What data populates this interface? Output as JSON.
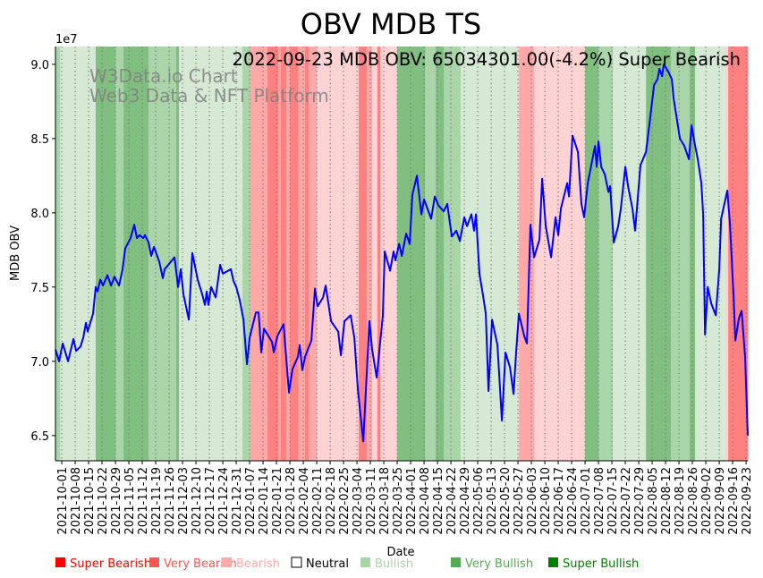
{
  "chart_data": {
    "type": "line",
    "title": "OBV MDB TS",
    "annotation": "2022-09-23 MDB OBV: 65034301.00(-4.2%) Super Bearish",
    "watermark": [
      "W3Data.io Chart",
      "Web3 Data & NFT Platform"
    ],
    "xlabel": "Date",
    "ylabel": "MDB OBV",
    "y_offset_label": "1e7",
    "x_unit": "days since 2021-10-01",
    "xlim": [
      -3.3,
      357.9
    ],
    "ylim": [
      6.33,
      9.12
    ],
    "y_ticks": [
      6.5,
      7.0,
      7.5,
      8.0,
      8.5,
      9.0
    ],
    "y_tick_labels": [
      "6.5",
      "7.0",
      "7.5",
      "8.0",
      "8.5",
      "9.0"
    ],
    "x_tick_labels": [
      "2021-10-01",
      "2021-10-08",
      "2021-10-15",
      "2021-10-22",
      "2021-10-29",
      "2021-11-05",
      "2021-11-12",
      "2021-11-19",
      "2021-11-26",
      "2021-12-03",
      "2021-12-10",
      "2021-12-17",
      "2021-12-24",
      "2021-12-31",
      "2022-01-07",
      "2022-01-14",
      "2022-01-21",
      "2022-01-28",
      "2022-02-04",
      "2022-02-11",
      "2022-02-18",
      "2022-02-25",
      "2022-03-04",
      "2022-03-11",
      "2022-03-18",
      "2022-03-25",
      "2022-04-01",
      "2022-04-08",
      "2022-04-15",
      "2022-04-22",
      "2022-04-29",
      "2022-05-06",
      "2022-05-13",
      "2022-05-20",
      "2022-05-27",
      "2022-06-03",
      "2022-06-10",
      "2022-06-17",
      "2022-06-24",
      "2022-07-01",
      "2022-07-08",
      "2022-07-15",
      "2022-07-22",
      "2022-07-29",
      "2022-08-05",
      "2022-08-12",
      "2022-08-19",
      "2022-08-26",
      "2022-09-02",
      "2022-09-09",
      "2022-09-16",
      "2022-09-23"
    ],
    "x_tick_step_days": 7,
    "grid": "vertical dotted",
    "series": [
      {
        "name": "MDB OBV (1e7)",
        "color": "#0000ff",
        "x": [
          -3.3,
          -1.4,
          0.5,
          3.3,
          6.1,
          7.5,
          9.8,
          11.2,
          12.6,
          13.5,
          16.3,
          17.7,
          18.7,
          20.1,
          21.5,
          23.8,
          25.7,
          27.5,
          29.9,
          31.7,
          33.1,
          35.9,
          37.8,
          39.2,
          40.6,
          42.5,
          43.4,
          45.3,
          46.7,
          48.1,
          50.9,
          52.7,
          53.7,
          58.8,
          60.7,
          62.1,
          63.5,
          66.3,
          68.1,
          70.9,
          73.3,
          74.7,
          75.6,
          76.5,
          77.9,
          80.3,
          82.6,
          84.0,
          88.2,
          89.6,
          91.0,
          92.9,
          94.8,
          96.6,
          98.0,
          101.3,
          102.7,
          104.1,
          105.5,
          109.7,
          110.6,
          112.5,
          115.7,
          118.5,
          120.4,
          123.2,
          124.1,
          125.5,
          126.9,
          130.2,
          132.1,
          133.5,
          136.3,
          137.7,
          140.5,
          144.2,
          145.6,
          147.5,
          150.7,
          152.6,
          154.5,
          157.3,
          160.5,
          161.9,
          164.3,
          167.5,
          168.5,
          171.3,
          173.1,
          174.1,
          176.0,
          177.4,
          179.7,
          181.5,
          182.9,
          185.3,
          187.6,
          189.0,
          192.7,
          194.6,
          196.5,
          199.3,
          201.1,
          203.5,
          205.8,
          207.7,
          210.0,
          211.4,
          213.7,
          215.1,
          216.1,
          217.9,
          219.8,
          221.2,
          222.6,
          224.5,
          227.3,
          229.6,
          231.5,
          233.8,
          235.7,
          237.1,
          238.5,
          241.3,
          242.7,
          244.5,
          246.4,
          249.2,
          250.6,
          252.5,
          255.3,
          257.6,
          259.0,
          260.4,
          263.7,
          264.6,
          266.5,
          269.3,
          271.1,
          272.5,
          274.4,
          278.2,
          279.1,
          280.0,
          281.4,
          283.3,
          285.2,
          286.1,
          288.0,
          290.3,
          291.7,
          294.0,
          295.4,
          297.7,
          299.1,
          301.9,
          304.8,
          306.6,
          309.0,
          310.8,
          311.8,
          313.2,
          314.1,
          316.4,
          318.3,
          319.2,
          322.5,
          324.8,
          327.2,
          328.6,
          330.0,
          331.8,
          333.7,
          334.6,
          335.6,
          337.0,
          338.8,
          341.2,
          343.0,
          344.0,
          347.2,
          348.6,
          350.5,
          351.4,
          353.3,
          354.7,
          356.5,
          357.9
        ],
        "y": [
          7.08,
          7.0,
          7.12,
          7.0,
          7.15,
          7.07,
          7.1,
          7.16,
          7.26,
          7.2,
          7.32,
          7.5,
          7.47,
          7.55,
          7.51,
          7.58,
          7.51,
          7.57,
          7.51,
          7.62,
          7.76,
          7.83,
          7.92,
          7.83,
          7.85,
          7.83,
          7.85,
          7.8,
          7.71,
          7.77,
          7.67,
          7.56,
          7.62,
          7.7,
          7.5,
          7.62,
          7.45,
          7.28,
          7.73,
          7.55,
          7.45,
          7.38,
          7.47,
          7.38,
          7.5,
          7.43,
          7.65,
          7.59,
          7.62,
          7.54,
          7.5,
          7.41,
          7.28,
          6.98,
          7.16,
          7.33,
          7.33,
          7.06,
          7.22,
          7.13,
          7.06,
          7.17,
          7.25,
          6.79,
          6.95,
          7.03,
          7.11,
          6.94,
          7.03,
          7.14,
          7.49,
          7.37,
          7.43,
          7.51,
          7.27,
          7.2,
          7.04,
          7.27,
          7.31,
          7.16,
          6.81,
          6.46,
          7.27,
          7.08,
          6.89,
          7.31,
          7.74,
          7.61,
          7.74,
          7.68,
          7.79,
          7.71,
          7.86,
          7.79,
          8.12,
          8.25,
          7.99,
          8.09,
          7.96,
          8.11,
          8.05,
          8.01,
          8.06,
          7.84,
          7.88,
          7.81,
          7.97,
          7.91,
          7.99,
          7.88,
          7.99,
          7.59,
          7.44,
          7.32,
          6.8,
          7.28,
          7.11,
          6.6,
          7.06,
          6.96,
          6.78,
          7.07,
          7.32,
          7.17,
          7.12,
          7.92,
          7.7,
          7.82,
          8.23,
          7.91,
          7.7,
          7.97,
          7.85,
          8.03,
          8.2,
          8.11,
          8.52,
          8.41,
          8.06,
          7.97,
          8.2,
          8.45,
          8.31,
          8.48,
          8.31,
          8.26,
          8.14,
          8.18,
          7.8,
          7.91,
          8.03,
          8.31,
          8.18,
          8.03,
          7.88,
          8.32,
          8.41,
          8.6,
          8.86,
          8.9,
          8.97,
          8.92,
          9.0,
          8.95,
          8.9,
          8.77,
          8.5,
          8.45,
          8.36,
          8.59,
          8.48,
          8.36,
          8.2,
          7.99,
          7.18,
          7.5,
          7.39,
          7.31,
          7.62,
          7.96,
          8.15,
          7.92,
          7.44,
          7.14,
          7.29,
          7.34,
          7.03,
          6.5
        ]
      }
    ],
    "signal_bands": [
      [
        -3.3,
        -0.9,
        2
      ],
      [
        -0.9,
        17.7,
        1
      ],
      [
        17.7,
        28.0,
        3
      ],
      [
        28.0,
        32.2,
        2
      ],
      [
        32.2,
        45.3,
        3
      ],
      [
        45.3,
        59.7,
        2
      ],
      [
        59.7,
        61.1,
        3
      ],
      [
        61.1,
        94.3,
        1
      ],
      [
        94.3,
        98.5,
        2
      ],
      [
        98.5,
        107.3,
        -2
      ],
      [
        107.3,
        112.9,
        -3
      ],
      [
        112.9,
        114.3,
        -2
      ],
      [
        114.3,
        117.1,
        -3
      ],
      [
        117.1,
        119.0,
        -2
      ],
      [
        119.0,
        123.2,
        -3
      ],
      [
        123.2,
        126.9,
        -2
      ],
      [
        126.9,
        128.8,
        -3
      ],
      [
        128.8,
        133.0,
        -2
      ],
      [
        133.0,
        154.9,
        -1
      ],
      [
        154.9,
        159.1,
        -3
      ],
      [
        159.1,
        161.9,
        -2
      ],
      [
        161.9,
        164.7,
        -1
      ],
      [
        164.7,
        166.1,
        -3
      ],
      [
        166.1,
        175.0,
        -1
      ],
      [
        175.0,
        189.5,
        3
      ],
      [
        189.5,
        195.1,
        2
      ],
      [
        195.1,
        199.3,
        3
      ],
      [
        199.3,
        208.1,
        2
      ],
      [
        208.1,
        238.5,
        1
      ],
      [
        238.5,
        246.4,
        -2
      ],
      [
        246.4,
        273.0,
        -1
      ],
      [
        273.0,
        280.0,
        3
      ],
      [
        280.0,
        287.5,
        2
      ],
      [
        287.5,
        304.8,
        1
      ],
      [
        304.8,
        317.8,
        3
      ],
      [
        317.8,
        327.6,
        2
      ],
      [
        327.6,
        330.4,
        3
      ],
      [
        330.4,
        346.3,
        1
      ],
      [
        346.3,
        347.7,
        -1
      ],
      [
        347.7,
        357.9,
        -3
      ]
    ],
    "band_colors": {
      "3": "#80bf80",
      "2": "#a9d5a9",
      "1": "#d5e9d5",
      "-1": "#ffd3d3",
      "-2": "#ffa8a8",
      "-3": "#ff8080"
    },
    "legend": {
      "placement": "bottom",
      "items": [
        {
          "label": "Super Bearish",
          "color": "#ff0000",
          "text_color": "#ff0000"
        },
        {
          "label": "Very Bearish",
          "color": "#ff5555",
          "text_color": "#ff5555"
        },
        {
          "label": "Bearish",
          "color": "#ffaaaa",
          "text_color": "#ffaaaa"
        },
        {
          "label": "Neutral",
          "color": "#ffffff",
          "text_color": "#000000"
        },
        {
          "label": "Bullish",
          "color": "#a8d5a8",
          "text_color": "#a8d5a8"
        },
        {
          "label": "Very Bullish",
          "color": "#55aa55",
          "text_color": "#55aa55"
        },
        {
          "label": "Super Bullish",
          "color": "#008000",
          "text_color": "#008000"
        }
      ]
    }
  }
}
